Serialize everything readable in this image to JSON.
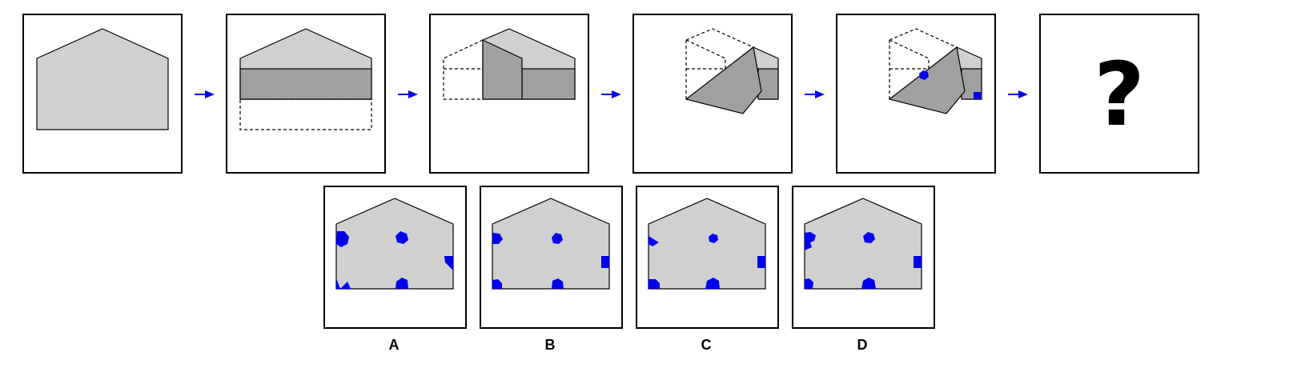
{
  "puzzle": {
    "sequence": [
      {
        "step": 1,
        "content": "unfolded-sheet"
      },
      {
        "step": 2,
        "content": "bottom-strip-folded-up"
      },
      {
        "step": 3,
        "content": "left-part-folded-right"
      },
      {
        "step": 4,
        "content": "corner-folded-diagonally"
      },
      {
        "step": 5,
        "content": "holes-punched"
      },
      {
        "step": 6,
        "content": "unknown",
        "text": "?"
      }
    ],
    "arrow_icon": "right-arrow-icon",
    "options": [
      {
        "label": "A"
      },
      {
        "label": "B"
      },
      {
        "label": "C"
      },
      {
        "label": "D"
      }
    ],
    "colors": {
      "sheet": "#d0d0d0",
      "folded_layer": "#a0a0a0",
      "holes": "#0000ee",
      "arrows": "#0000ee"
    }
  }
}
